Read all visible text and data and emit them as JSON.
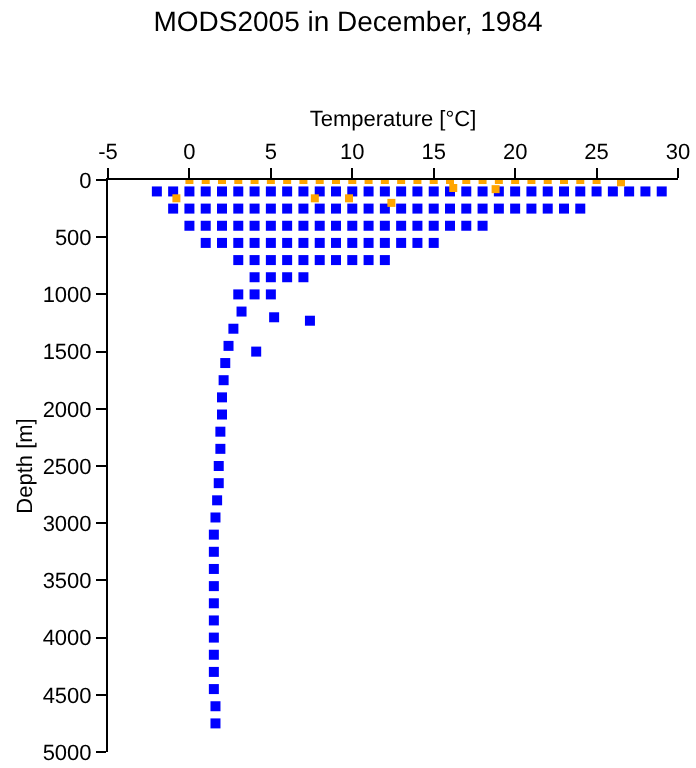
{
  "chart_data": {
    "type": "scatter",
    "title": "MODS2005 in December, 1984",
    "xlabel": "Temperature [°C]",
    "ylabel": "Depth [m]",
    "xlim": [
      -5,
      30
    ],
    "xticks": [
      -5,
      0,
      5,
      10,
      15,
      20,
      25,
      30
    ],
    "ylim": [
      5000,
      0
    ],
    "yticks": [
      0,
      500,
      1000,
      1500,
      2000,
      2500,
      3000,
      3500,
      4000,
      4500,
      5000
    ],
    "grid": false,
    "marker": "square",
    "series": [
      {
        "color": "#0000ff",
        "x": [
          -2,
          -1,
          0,
          1,
          2,
          3,
          4,
          5,
          6,
          7,
          8,
          9,
          10,
          11,
          12,
          13,
          14,
          15,
          16,
          17,
          18,
          19,
          20,
          21,
          22,
          23,
          24,
          25,
          26,
          27,
          28,
          29,
          -1,
          0,
          1,
          2,
          3,
          4,
          5,
          6,
          7,
          8,
          9,
          10,
          11,
          12,
          13,
          14,
          15,
          16,
          17,
          18,
          19,
          20,
          21,
          22,
          23,
          24,
          0,
          1,
          2,
          3,
          4,
          5,
          6,
          7,
          8,
          9,
          10,
          11,
          12,
          13,
          14,
          15,
          16,
          17,
          18,
          1,
          2,
          3,
          4,
          5,
          6,
          7,
          8,
          9,
          10,
          11,
          12,
          13,
          14,
          15,
          3,
          4,
          5,
          6,
          7,
          8,
          9,
          10,
          11,
          12,
          4,
          5,
          6,
          7,
          3,
          4,
          5,
          3.2,
          2.7,
          2.4,
          2.2,
          2.1,
          2,
          2,
          1.9,
          1.9,
          1.8,
          1.8,
          1.7,
          1.6,
          1.5,
          1.5,
          1.5,
          1.5,
          1.5,
          1.5,
          1.5,
          1.5,
          1.5,
          1.5,
          1.6,
          1.6,
          5.2,
          7.4,
          4.1
        ],
        "values": [
          100,
          100,
          100,
          100,
          100,
          100,
          100,
          100,
          100,
          100,
          100,
          100,
          100,
          100,
          100,
          100,
          100,
          100,
          100,
          100,
          100,
          100,
          100,
          100,
          100,
          100,
          100,
          100,
          100,
          100,
          100,
          100,
          250,
          250,
          250,
          250,
          250,
          250,
          250,
          250,
          250,
          250,
          250,
          250,
          250,
          250,
          250,
          250,
          250,
          250,
          250,
          250,
          250,
          250,
          250,
          250,
          250,
          250,
          400,
          400,
          400,
          400,
          400,
          400,
          400,
          400,
          400,
          400,
          400,
          400,
          400,
          400,
          400,
          400,
          400,
          400,
          400,
          550,
          550,
          550,
          550,
          550,
          550,
          550,
          550,
          550,
          550,
          550,
          550,
          550,
          550,
          550,
          700,
          700,
          700,
          700,
          700,
          700,
          700,
          700,
          700,
          700,
          850,
          850,
          850,
          850,
          1000,
          1000,
          1000,
          1150,
          1300,
          1450,
          1600,
          1750,
          1900,
          2050,
          2200,
          2350,
          2500,
          2650,
          2800,
          2950,
          3100,
          3250,
          3400,
          3550,
          3700,
          3850,
          4000,
          4150,
          4300,
          4450,
          4600,
          4750,
          1200,
          1230,
          1500
        ]
      },
      {
        "color": "#ffa500",
        "x": [
          0,
          1,
          2,
          3,
          4,
          5,
          6,
          7,
          8,
          9,
          10,
          11,
          12,
          13,
          14,
          15,
          16,
          17,
          18,
          19,
          20,
          21,
          22,
          23,
          24,
          25,
          26.5,
          -0.8,
          7.7,
          9.8,
          12.4,
          16.2,
          18.8
        ],
        "values": [
          0,
          0,
          0,
          0,
          0,
          0,
          0,
          0,
          0,
          0,
          0,
          0,
          0,
          0,
          0,
          0,
          0,
          0,
          0,
          0,
          0,
          0,
          0,
          0,
          0,
          0,
          20,
          160,
          160,
          160,
          200,
          70,
          80
        ]
      }
    ]
  }
}
